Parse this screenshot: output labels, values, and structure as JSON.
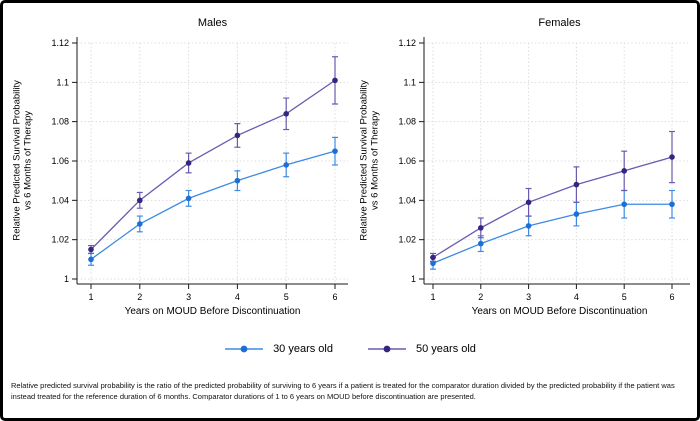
{
  "chart_data": [
    {
      "type": "line",
      "title": "Males",
      "xlabel": "Years on MOUD Before Discontinuation",
      "ylabel_lines": [
        "Relative Predicted Survival Probability",
        "vs 6 Months of Therapy"
      ],
      "x": [
        1,
        2,
        3,
        4,
        5,
        6
      ],
      "xtick_labels": [
        "1",
        "2",
        "3",
        "4",
        "5",
        "6"
      ],
      "ylim": [
        1.0,
        1.12
      ],
      "ytick_values": [
        1.0,
        1.02,
        1.04,
        1.06,
        1.08,
        1.1,
        1.12
      ],
      "ytick_labels": [
        "1",
        "1.02",
        "1.04",
        "1.06",
        "1.08",
        "1.1",
        "1.12"
      ],
      "grid": true,
      "series": [
        {
          "name": "30 years old",
          "color": "#3d8be4",
          "marker_color": "#1b6fd6",
          "values": [
            1.01,
            1.028,
            1.041,
            1.05,
            1.058,
            1.065
          ],
          "ci_halfwidth": [
            0.003,
            0.004,
            0.004,
            0.005,
            0.006,
            0.007
          ]
        },
        {
          "name": "50 years old",
          "color": "#6b5bb0",
          "marker_color": "#35257e",
          "values": [
            1.015,
            1.04,
            1.059,
            1.073,
            1.084,
            1.101
          ],
          "ci_halfwidth": [
            0.002,
            0.004,
            0.005,
            0.006,
            0.008,
            0.012
          ]
        }
      ]
    },
    {
      "type": "line",
      "title": "Females",
      "xlabel": "Years on MOUD Before Discontinuation",
      "ylabel_lines": [
        "Relative Predicted Survival Probability",
        "vs 6 Months of Therapy"
      ],
      "x": [
        1,
        2,
        3,
        4,
        5,
        6
      ],
      "xtick_labels": [
        "1",
        "2",
        "3",
        "4",
        "5",
        "6"
      ],
      "ylim": [
        1.0,
        1.12
      ],
      "ytick_values": [
        1.0,
        1.02,
        1.04,
        1.06,
        1.08,
        1.1,
        1.12
      ],
      "ytick_labels": [
        "1",
        "1.02",
        "1.04",
        "1.06",
        "1.08",
        "1.1",
        "1.12"
      ],
      "grid": true,
      "series": [
        {
          "name": "30 years old",
          "color": "#3d8be4",
          "marker_color": "#1b6fd6",
          "values": [
            1.008,
            1.018,
            1.027,
            1.033,
            1.038,
            1.038
          ],
          "ci_halfwidth": [
            0.003,
            0.004,
            0.005,
            0.006,
            0.007,
            0.007
          ]
        },
        {
          "name": "50 years old",
          "color": "#6b5bb0",
          "marker_color": "#35257e",
          "values": [
            1.011,
            1.026,
            1.039,
            1.048,
            1.055,
            1.062
          ],
          "ci_halfwidth": [
            0.002,
            0.005,
            0.007,
            0.009,
            0.01,
            0.013
          ]
        }
      ]
    }
  ],
  "legend": {
    "position": "bottom-center",
    "items": [
      {
        "label": "30 years old",
        "color": "#3d8be4",
        "marker_color": "#1b6fd6"
      },
      {
        "label": "50 years old",
        "color": "#6b5bb0",
        "marker_color": "#35257e"
      }
    ]
  },
  "footnote": "Relative predicted survival probability is the ratio of the predicted probability of surviving to 6 years if a patient is treated for the comparator duration divided by the predicted probability if the patient was instead treated for the reference duration of 6 months. Comparator durations of 1 to 6 years on MOUD before discontinuation are presented."
}
